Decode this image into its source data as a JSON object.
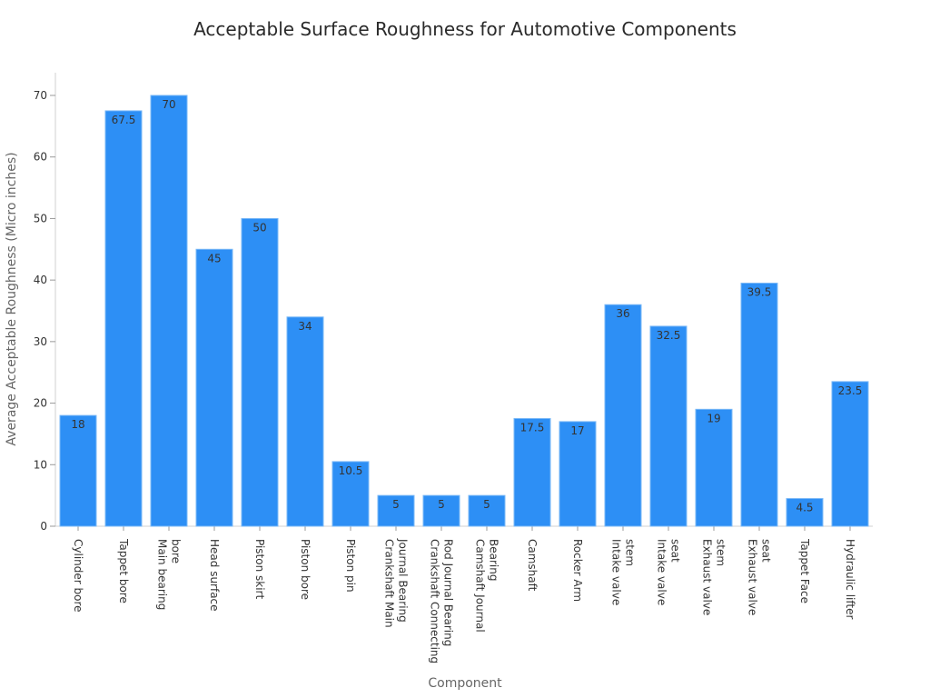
{
  "chart_data": {
    "type": "bar",
    "title": "Acceptable Surface Roughness for Automotive Components",
    "xlabel": "Component",
    "ylabel": "Average Acceptable Roughness (Micro inches)",
    "ylim": [
      0,
      73
    ],
    "yticks": [
      0,
      10,
      20,
      30,
      40,
      50,
      60,
      70
    ],
    "grid": false,
    "legend": null,
    "bar_color": "#2d8ff5",
    "categories": [
      "Cylinder bore",
      "Tappet bore",
      "Main bearing bore",
      "Head surface",
      "Piston skirt",
      "Piston bore",
      "Piston pin",
      "Crankshaft Main Journal Bearing",
      "Crankshaft Connecting Rod Journal Bearing",
      "Camshaft Journal Bearing",
      "Camshaft",
      "Rocker Arm",
      "Intake valve stem",
      "Intake valve seat",
      "Exhaust valve stem",
      "Exhaust valve seat",
      "Tappet Face",
      "Hydraulic lifter"
    ],
    "category_lines": [
      [
        "Cylinder bore"
      ],
      [
        "Tappet bore"
      ],
      [
        "Main bearing",
        "bore"
      ],
      [
        "Head surface"
      ],
      [
        "Piston skirt"
      ],
      [
        "Piston bore"
      ],
      [
        "Piston pin"
      ],
      [
        "Crankshaft Main",
        "Journal Bearing"
      ],
      [
        "Crankshaft Connecting",
        "Rod Journal Bearing"
      ],
      [
        "Camshaft Journal",
        "Bearing"
      ],
      [
        "Camshaft"
      ],
      [
        "Rocker Arm"
      ],
      [
        "Intake valve",
        "stem"
      ],
      [
        "Intake valve",
        "seat"
      ],
      [
        "Exhaust valve",
        "stem"
      ],
      [
        "Exhaust valve",
        "seat"
      ],
      [
        "Tappet Face"
      ],
      [
        "Hydraulic lifter"
      ]
    ],
    "values": [
      18,
      67.5,
      70,
      45,
      50,
      34,
      10.5,
      5,
      5,
      5,
      17.5,
      17,
      36,
      32.5,
      19,
      39.5,
      4.5,
      23.5
    ],
    "value_labels": [
      "18",
      "67.5",
      "70",
      "45",
      "50",
      "34",
      "10.5",
      "5",
      "5",
      "5",
      "17.5",
      "17",
      "36",
      "32.5",
      "19",
      "39.5",
      "4.5",
      "23.5"
    ]
  }
}
